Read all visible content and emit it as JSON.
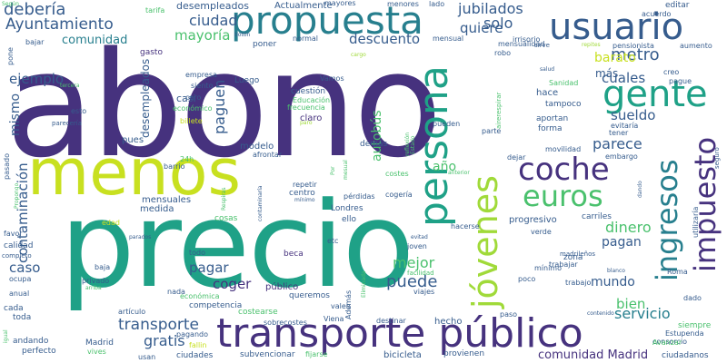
{
  "cloud": {
    "colors": {
      "background": "#ffffff",
      "dark_purple": "#46327e",
      "blue": "#365c8d",
      "teal_blue": "#277f8e",
      "teal": "#1fa187",
      "green": "#4ac16d",
      "lime": "#a0da39",
      "yellow": "#c8e020"
    },
    "words": [
      {
        "key": "abono",
        "text": "abono"
      },
      {
        "key": "precio",
        "text": "precio"
      },
      {
        "key": "menos",
        "text": "menos"
      },
      {
        "key": "propuesta",
        "text": "propuesta"
      },
      {
        "key": "usuario",
        "text": "usuario"
      },
      {
        "key": "gente",
        "text": "gente"
      },
      {
        "key": "coche",
        "text": "coche"
      },
      {
        "key": "euros",
        "text": "euros"
      },
      {
        "key": "transporte_publico",
        "text": "transporte público"
      },
      {
        "key": "persona",
        "text": "persona"
      },
      {
        "key": "jovenes",
        "text": "jóvenes"
      },
      {
        "key": "ingresos",
        "text": "ingresos"
      },
      {
        "key": "impuesto",
        "text": "impuesto"
      },
      {
        "key": "deberia",
        "text": "debería"
      },
      {
        "key": "ayuntamiento",
        "text": "Ayuntamiento"
      },
      {
        "key": "comunidad",
        "text": "comunidad"
      },
      {
        "key": "ciudad",
        "text": "ciudad"
      },
      {
        "key": "mayoria",
        "text": "mayoría"
      },
      {
        "key": "jubilados",
        "text": "jubilados"
      },
      {
        "key": "solo",
        "text": "solo"
      },
      {
        "key": "quiere",
        "text": "quiere"
      },
      {
        "key": "descuento",
        "text": "descuento"
      },
      {
        "key": "metro",
        "text": "metro"
      },
      {
        "key": "barato",
        "text": "barato"
      },
      {
        "key": "cuales",
        "text": "cuales"
      },
      {
        "key": "sueldo",
        "text": "sueldo"
      },
      {
        "key": "dinero",
        "text": "dinero"
      },
      {
        "key": "parece",
        "text": "parece"
      },
      {
        "key": "pagar",
        "text": "pagar"
      },
      {
        "key": "coger",
        "text": "coger"
      },
      {
        "key": "puede",
        "text": "puede"
      },
      {
        "key": "mejor",
        "text": "mejor"
      },
      {
        "key": "pagan",
        "text": "pagan"
      },
      {
        "key": "mundo",
        "text": "mundo"
      },
      {
        "key": "servicio",
        "text": "servicio"
      },
      {
        "key": "gratis",
        "text": "gratis"
      },
      {
        "key": "transporte",
        "text": "transporte"
      },
      {
        "key": "contaminacion",
        "text": "contaminación"
      },
      {
        "key": "ejemplo",
        "text": "ejemplo"
      },
      {
        "key": "caso",
        "text": "caso"
      },
      {
        "key": "bien",
        "text": "bien"
      },
      {
        "key": "comunidad_madrid",
        "text": "comunidad Madrid"
      },
      {
        "key": "paguen",
        "text": "paguen"
      },
      {
        "key": "autobus",
        "text": "autobús"
      },
      {
        "key": "mismo",
        "text": "mismo"
      },
      {
        "key": "desempleados",
        "text": "desempleados"
      },
      {
        "key": "actualmente",
        "text": "Actualmente"
      },
      {
        "key": "mayores",
        "text": "mayores"
      },
      {
        "key": "menores",
        "text": "menores"
      },
      {
        "key": "lado",
        "text": "lado"
      },
      {
        "key": "editar",
        "text": "editar"
      },
      {
        "key": "acuerdo",
        "text": "acuerdo"
      },
      {
        "key": "tarifa",
        "text": "tarifa"
      },
      {
        "key": "segun",
        "text": "Según"
      },
      {
        "key": "gasto",
        "text": "gasto"
      },
      {
        "key": "bajar",
        "text": "bajar"
      },
      {
        "key": "pone",
        "text": "pone"
      },
      {
        "key": "boton",
        "text": "botón"
      },
      {
        "key": "poner",
        "text": "poner"
      },
      {
        "key": "normal",
        "text": "normal"
      },
      {
        "key": "mensual",
        "text": "mensual"
      },
      {
        "key": "irrisorio",
        "text": "irrisorio"
      },
      {
        "key": "pensionista",
        "text": "pensionista"
      },
      {
        "key": "aumento",
        "text": "aumento"
      },
      {
        "key": "cargo",
        "text": "cargo"
      },
      {
        "key": "robo",
        "text": "robo"
      },
      {
        "key": "mas",
        "text": "más"
      },
      {
        "key": "creo",
        "text": "creo"
      },
      {
        "key": "pague",
        "text": "pague"
      },
      {
        "key": "empresa",
        "text": "empresa"
      },
      {
        "key": "siento",
        "text": "siento"
      },
      {
        "key": "caro",
        "text": "caro"
      },
      {
        "key": "luego",
        "text": "Luego"
      },
      {
        "key": "casi",
        "text": "casi"
      },
      {
        "key": "vamos",
        "text": "Vamos"
      },
      {
        "key": "cuestion",
        "text": "cuestión"
      },
      {
        "key": "educacion",
        "text": "Educación"
      },
      {
        "key": "frecuencia",
        "text": "frecuencia"
      },
      {
        "key": "hace",
        "text": "hace"
      },
      {
        "key": "sanidad",
        "text": "Sanidad"
      },
      {
        "key": "tampoco",
        "text": "tampoco"
      },
      {
        "key": "salud",
        "text": "salud"
      },
      {
        "key": "tercera",
        "text": "tercera"
      },
      {
        "key": "esto",
        "text": "esto"
      },
      {
        "key": "economico",
        "text": "económico"
      },
      {
        "key": "billete",
        "text": "billete"
      },
      {
        "key": "claro",
        "text": "claro"
      },
      {
        "key": "paro",
        "text": "paro"
      },
      {
        "key": "aportan",
        "text": "aportan"
      },
      {
        "key": "forma",
        "text": "forma"
      },
      {
        "key": "tener",
        "text": "tener"
      },
      {
        "key": "evitaria",
        "text": "evitaría"
      },
      {
        "key": "pueden",
        "text": "pueden"
      },
      {
        "key": "parte",
        "text": "parte"
      },
      {
        "key": "movilidad",
        "text": "movilidad"
      },
      {
        "key": "embargo",
        "text": "embargo"
      },
      {
        "key": "parecería",
        "text": "parecería"
      },
      {
        "key": "pues",
        "text": "pues"
      },
      {
        "key": "modelo",
        "text": "modelo"
      },
      {
        "key": "24h",
        "text": "24h"
      },
      {
        "key": "afrontar",
        "text": "afrontar"
      },
      {
        "key": "demas",
        "text": "demás"
      },
      {
        "key": "estado",
        "text": "Estado"
      },
      {
        "key": "dejar",
        "text": "dejar"
      },
      {
        "key": "anterior",
        "text": "anterior"
      },
      {
        "key": "reflexion",
        "text": "reflexión"
      },
      {
        "key": "pasado",
        "text": "pasado"
      },
      {
        "key": "propongo",
        "text": "Propongo"
      },
      {
        "key": "barrio",
        "text": "barrio"
      },
      {
        "key": "respiras",
        "text": "Respiras"
      },
      {
        "key": "contaminaria",
        "text": "contaminaría"
      },
      {
        "key": "repetir",
        "text": "repetir"
      },
      {
        "key": "minimo_small",
        "text": "mínimo"
      },
      {
        "key": "pérdidas",
        "text": "pérdidas"
      },
      {
        "key": "cogeria",
        "text": "cogería"
      },
      {
        "key": "mensuales",
        "text": "mensuales"
      },
      {
        "key": "medida",
        "text": "medida"
      },
      {
        "key": "centro",
        "text": "centro"
      },
      {
        "key": "londres",
        "text": "Londres"
      },
      {
        "key": "ello",
        "text": "ello"
      },
      {
        "key": "edad",
        "text": "edad"
      },
      {
        "key": "cosas",
        "text": "cosas"
      },
      {
        "key": "carriles",
        "text": "carriles"
      },
      {
        "key": "calidad",
        "text": "calidad"
      },
      {
        "key": "favor",
        "text": "favor"
      },
      {
        "key": "parados",
        "text": "parados"
      },
      {
        "key": "etc",
        "text": "etc"
      },
      {
        "key": "evitad",
        "text": "evitad"
      },
      {
        "key": "hacerse",
        "text": "hacerse"
      },
      {
        "key": "verde",
        "text": "verde"
      },
      {
        "key": "progresivo",
        "text": "progresivo"
      },
      {
        "key": "todo",
        "text": "todo"
      },
      {
        "key": "beca",
        "text": "beca"
      },
      {
        "key": "joven",
        "text": "joven"
      },
      {
        "key": "zona",
        "text": "zona"
      },
      {
        "key": "madrilenos",
        "text": "madrileños"
      },
      {
        "key": "trabajar",
        "text": "trabajar"
      },
      {
        "key": "minimo",
        "text": "mínimo"
      },
      {
        "key": "blanco",
        "text": "blanco"
      },
      {
        "key": "roma",
        "text": "Roma"
      },
      {
        "key": "baja",
        "text": "baja"
      },
      {
        "key": "privado",
        "text": "privado"
      },
      {
        "key": "arriba",
        "text": "arriba"
      },
      {
        "key": "ocupa",
        "text": "ocupa"
      },
      {
        "key": "anual",
        "text": "anual"
      },
      {
        "key": "publico",
        "text": "público"
      },
      {
        "key": "queremos",
        "text": "queremos"
      },
      {
        "key": "ademas",
        "text": "Además"
      },
      {
        "key": "eliminada",
        "text": "Eliminada"
      },
      {
        "key": "facilidad",
        "text": "facilidad"
      },
      {
        "key": "viajes",
        "text": "viajes"
      },
      {
        "key": "poco",
        "text": "poco"
      },
      {
        "key": "trabajo",
        "text": "trabajo"
      },
      {
        "key": "dado",
        "text": "dado"
      },
      {
        "key": "nada",
        "text": "nada"
      },
      {
        "key": "economica",
        "text": "económica"
      },
      {
        "key": "competencia",
        "text": "competencia"
      },
      {
        "key": "articulo",
        "text": "artículo"
      },
      {
        "key": "pagando",
        "text": "pagando"
      },
      {
        "key": "fallin",
        "text": "fallin"
      },
      {
        "key": "costearse",
        "text": "costearse"
      },
      {
        "key": "sobrecostes",
        "text": "sobrecostes"
      },
      {
        "key": "viena",
        "text": "Viena"
      },
      {
        "key": "valen",
        "text": "valen"
      },
      {
        "key": "destinar",
        "text": "destinar"
      },
      {
        "key": "hecho",
        "text": "hecho"
      },
      {
        "key": "paso",
        "text": "paso"
      },
      {
        "key": "contenido",
        "text": "contenido"
      },
      {
        "key": "siempre",
        "text": "siempre"
      },
      {
        "key": "estupenda",
        "text": "Estupenda"
      },
      {
        "key": "consorcio",
        "text": "consorcio"
      },
      {
        "key": "avanzar",
        "text": "Avanzar"
      },
      {
        "key": "ciudadanos",
        "text": "ciudadanos"
      },
      {
        "key": "cada",
        "text": "cada"
      },
      {
        "key": "toda",
        "text": "toda"
      },
      {
        "key": "completo",
        "text": "completo"
      },
      {
        "key": "igual",
        "text": "igual"
      },
      {
        "key": "andando",
        "text": "andando"
      },
      {
        "key": "perfecto",
        "text": "perfecto"
      },
      {
        "key": "madrid",
        "text": "Madrid"
      },
      {
        "key": "vives",
        "text": "vives"
      },
      {
        "key": "usan",
        "text": "usan"
      },
      {
        "key": "ciudades",
        "text": "ciudades"
      },
      {
        "key": "subvencionar",
        "text": "subvencionar"
      },
      {
        "key": "fijarse",
        "text": "fijarse"
      },
      {
        "key": "bicicleta",
        "text": "bicicleta"
      },
      {
        "key": "provienen",
        "text": "provienen"
      },
      {
        "key": "costes",
        "text": "costes"
      },
      {
        "key": "por",
        "text": "Por"
      },
      {
        "key": "mesual",
        "text": "mesual"
      },
      {
        "key": "seguro",
        "text": "seguro"
      },
      {
        "key": "utilizaria",
        "text": "utilizaría"
      },
      {
        "key": "dando",
        "text": "dando"
      },
      {
        "key": "año",
        "text": "año"
      },
      {
        "key": "sirve",
        "text": "sirve"
      },
      {
        "key": "airerespirar",
        "text": "airerespirar"
      },
      {
        "key": "mensualidad",
        "text": "mensualidad"
      },
      {
        "key": "repites",
        "text": "repites"
      }
    ]
  }
}
